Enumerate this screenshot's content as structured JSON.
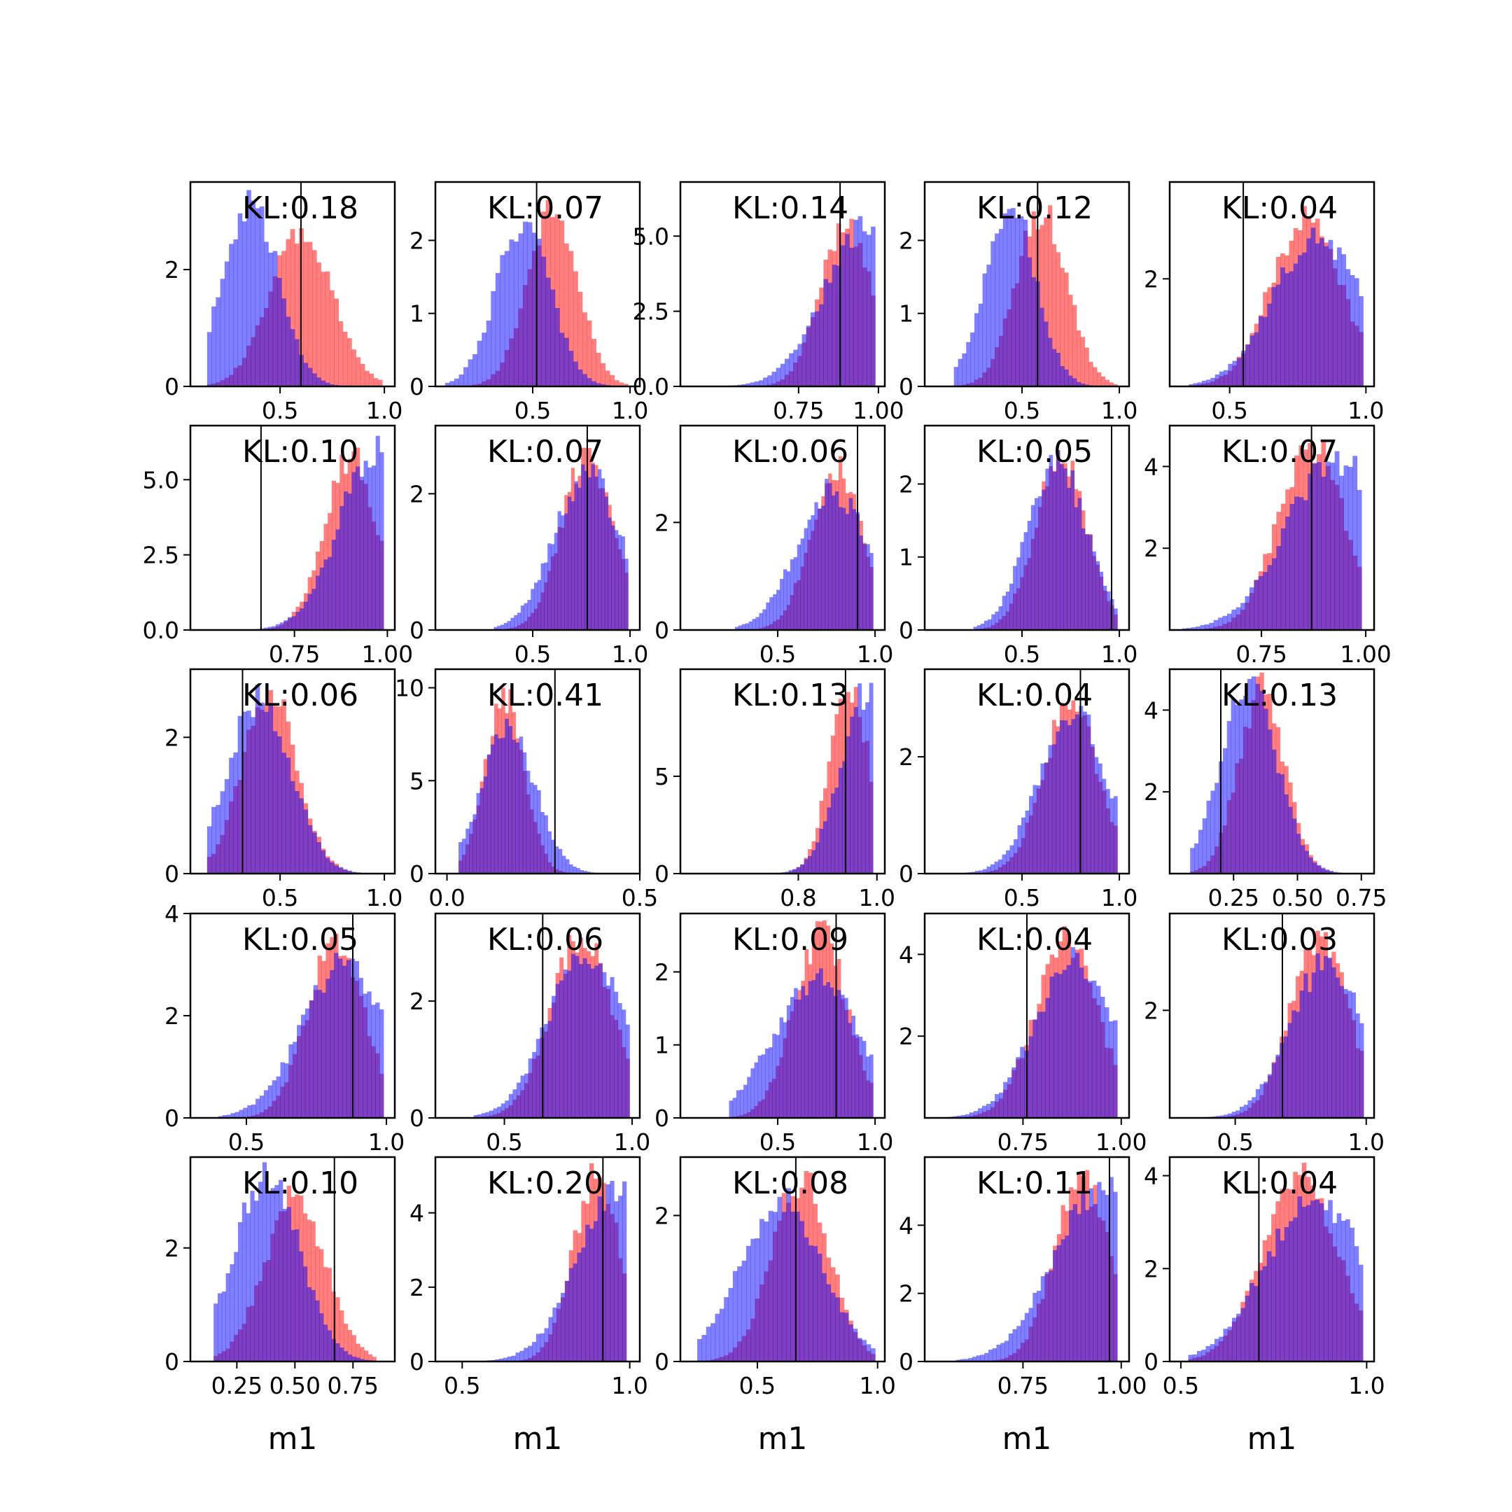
{
  "chart_data": {
    "type": "histogram-grid",
    "rows": 5,
    "cols": 5,
    "xlabel": "m1",
    "colors": {
      "series_a": "#ff0000",
      "series_b": "#0000ff",
      "overlap": "#8040c0",
      "alpha": 0.5
    },
    "panels": [
      {
        "kl": "KL:0.18",
        "xlim": [
          0.07,
          1.05
        ],
        "ylim": [
          0,
          3.5
        ],
        "xticks": [
          {
            "v": 0.5,
            "l": "0.5"
          },
          {
            "v": 1.0,
            "l": "1.0"
          }
        ],
        "yticks": [
          {
            "v": 0,
            "l": "0"
          },
          {
            "v": 2,
            "l": "2"
          }
        ],
        "vline": 0.6,
        "red_mode": 0.6,
        "red_sd": 0.15,
        "red_peak": 2.6,
        "blue_mode": 0.36,
        "blue_sd": 0.13,
        "blue_peak": 3.2,
        "xmin": 0.15,
        "xmax": 0.99
      },
      {
        "kl": "KL:0.07",
        "xlim": [
          0.0,
          1.05
        ],
        "ylim": [
          0,
          2.8
        ],
        "xticks": [
          {
            "v": 0.5,
            "l": "0.5"
          },
          {
            "v": 1.0,
            "l": "1.0"
          }
        ],
        "yticks": [
          {
            "v": 0,
            "l": "0"
          },
          {
            "v": 1,
            "l": "1"
          },
          {
            "v": 2,
            "l": "2"
          }
        ],
        "vline": 0.52,
        "red_mode": 0.6,
        "red_sd": 0.13,
        "red_peak": 2.4,
        "blue_mode": 0.45,
        "blue_sd": 0.14,
        "blue_peak": 2.2,
        "xmin": 0.05,
        "xmax": 0.99
      },
      {
        "kl": "KL:0.14",
        "xlim": [
          0.38,
          1.02
        ],
        "ylim": [
          0,
          6.8
        ],
        "xticks": [
          {
            "v": 0.75,
            "l": "0.75"
          },
          {
            "v": 1.0,
            "l": "1.00"
          }
        ],
        "yticks": [
          {
            "v": 0,
            "l": "0.0"
          },
          {
            "v": 2.5,
            "l": "2.5"
          },
          {
            "v": 5.0,
            "l": "5.0"
          }
        ],
        "vline": 0.88,
        "red_mode": 0.9,
        "red_sd": 0.08,
        "red_peak": 5.5,
        "blue_mode": 0.96,
        "blue_sd": 0.13,
        "blue_peak": 5.2,
        "xmin": 0.45,
        "xmax": 0.99
      },
      {
        "kl": "KL:0.12",
        "xlim": [
          0.0,
          1.05
        ],
        "ylim": [
          0,
          2.8
        ],
        "xticks": [
          {
            "v": 0.5,
            "l": "0.5"
          },
          {
            "v": 1.0,
            "l": "1.0"
          }
        ],
        "yticks": [
          {
            "v": 0,
            "l": "0"
          },
          {
            "v": 1,
            "l": "1"
          },
          {
            "v": 2,
            "l": "2"
          }
        ],
        "vline": 0.58,
        "red_mode": 0.6,
        "red_sd": 0.13,
        "red_peak": 2.4,
        "blue_mode": 0.44,
        "blue_sd": 0.13,
        "blue_peak": 2.5,
        "xmin": 0.15,
        "xmax": 0.99
      },
      {
        "kl": "KL:0.04",
        "xlim": [
          0.28,
          1.03
        ],
        "ylim": [
          0,
          3.8
        ],
        "xticks": [
          {
            "v": 0.5,
            "l": "0.5"
          },
          {
            "v": 1.0,
            "l": "1.0"
          }
        ],
        "yticks": [
          {
            "v": 2,
            "l": "2"
          }
        ],
        "vline": 0.55,
        "red_mode": 0.78,
        "red_sd": 0.13,
        "red_peak": 3.1,
        "blue_mode": 0.82,
        "blue_sd": 0.16,
        "blue_peak": 2.8,
        "xmin": 0.35,
        "xmax": 0.99
      },
      {
        "kl": "KL:0.10",
        "xlim": [
          0.47,
          1.02
        ],
        "ylim": [
          0,
          6.8
        ],
        "xticks": [
          {
            "v": 0.75,
            "l": "0.75"
          },
          {
            "v": 1.0,
            "l": "1.00"
          }
        ],
        "yticks": [
          {
            "v": 0,
            "l": "0.0"
          },
          {
            "v": 2.5,
            "l": "2.5"
          },
          {
            "v": 5.0,
            "l": "5.0"
          }
        ],
        "vline": 0.66,
        "red_mode": 0.9,
        "red_sd": 0.07,
        "red_peak": 5.8,
        "blue_mode": 0.97,
        "blue_sd": 0.1,
        "blue_peak": 5.9,
        "xmin": 0.56,
        "xmax": 0.99
      },
      {
        "kl": "KL:0.07",
        "xlim": [
          0.0,
          1.05
        ],
        "ylim": [
          0,
          3.0
        ],
        "xticks": [
          {
            "v": 0.5,
            "l": "0.5"
          },
          {
            "v": 1.0,
            "l": "1.0"
          }
        ],
        "yticks": [
          {
            "v": 0,
            "l": "0"
          },
          {
            "v": 2,
            "l": "2"
          }
        ],
        "vline": 0.78,
        "red_mode": 0.78,
        "red_sd": 0.13,
        "red_peak": 2.6,
        "blue_mode": 0.78,
        "blue_sd": 0.17,
        "blue_peak": 2.3,
        "xmin": 0.3,
        "xmax": 0.99
      },
      {
        "kl": "KL:0.06",
        "xlim": [
          0.0,
          1.05
        ],
        "ylim": [
          0,
          3.8
        ],
        "xticks": [
          {
            "v": 0.5,
            "l": "0.5"
          },
          {
            "v": 1.0,
            "l": "1.0"
          }
        ],
        "yticks": [
          {
            "v": 0,
            "l": "0"
          },
          {
            "v": 2,
            "l": "2"
          }
        ],
        "vline": 0.91,
        "red_mode": 0.8,
        "red_sd": 0.13,
        "red_peak": 3.0,
        "blue_mode": 0.78,
        "blue_sd": 0.18,
        "blue_peak": 2.6,
        "xmin": 0.28,
        "xmax": 0.99
      },
      {
        "kl": "KL:0.05",
        "xlim": [
          0.0,
          1.05
        ],
        "ylim": [
          0,
          2.8
        ],
        "xticks": [
          {
            "v": 0.5,
            "l": "0.5"
          },
          {
            "v": 1.0,
            "l": "1.0"
          }
        ],
        "yticks": [
          {
            "v": 0,
            "l": "0"
          },
          {
            "v": 1,
            "l": "1"
          },
          {
            "v": 2,
            "l": "2"
          }
        ],
        "vline": 0.96,
        "red_mode": 0.7,
        "red_sd": 0.13,
        "red_peak": 2.4,
        "blue_mode": 0.68,
        "blue_sd": 0.15,
        "blue_peak": 2.3,
        "xmin": 0.25,
        "xmax": 0.99
      },
      {
        "kl": "KL:0.07",
        "xlim": [
          0.53,
          1.02
        ],
        "ylim": [
          0,
          5.0
        ],
        "xticks": [
          {
            "v": 0.75,
            "l": "0.75"
          },
          {
            "v": 1.0,
            "l": "1.00"
          }
        ],
        "yticks": [
          {
            "v": 2,
            "l": "2"
          },
          {
            "v": 4,
            "l": "4"
          }
        ],
        "vline": 0.87,
        "red_mode": 0.87,
        "red_sd": 0.08,
        "red_peak": 4.5,
        "blue_mode": 0.93,
        "blue_sd": 0.12,
        "blue_peak": 4.2,
        "xmin": 0.56,
        "xmax": 0.99
      },
      {
        "kl": "KL:0.06",
        "xlim": [
          0.07,
          1.05
        ],
        "ylim": [
          0,
          3.0
        ],
        "xticks": [
          {
            "v": 0.5,
            "l": "0.5"
          },
          {
            "v": 1.0,
            "l": "1.0"
          }
        ],
        "yticks": [
          {
            "v": 0,
            "l": "0"
          },
          {
            "v": 2,
            "l": "2"
          }
        ],
        "vline": 0.32,
        "red_mode": 0.45,
        "red_sd": 0.13,
        "red_peak": 2.7,
        "blue_mode": 0.4,
        "blue_sd": 0.15,
        "blue_peak": 2.6,
        "xmin": 0.15,
        "xmax": 0.99
      },
      {
        "kl": "KL:0.41",
        "xlim": [
          -0.03,
          0.5
        ],
        "ylim": [
          0,
          11.0
        ],
        "xticks": [
          {
            "v": 0.0,
            "l": "0.0"
          },
          {
            "v": 0.5,
            "l": "0.5"
          }
        ],
        "yticks": [
          {
            "v": 0,
            "l": "0"
          },
          {
            "v": 5,
            "l": "5"
          },
          {
            "v": 10,
            "l": "10"
          }
        ],
        "vline": 0.28,
        "red_mode": 0.15,
        "red_sd": 0.05,
        "red_peak": 9.5,
        "blue_mode": 0.16,
        "blue_sd": 0.07,
        "blue_peak": 7.8,
        "xmin": 0.03,
        "xmax": 0.4
      },
      {
        "kl": "KL:0.13",
        "xlim": [
          0.5,
          1.02
        ],
        "ylim": [
          0,
          10.5
        ],
        "xticks": [
          {
            "v": 0.8,
            "l": "0.8"
          },
          {
            "v": 1.0,
            "l": "1.0"
          }
        ],
        "yticks": [
          {
            "v": 0,
            "l": "0"
          },
          {
            "v": 5,
            "l": "5"
          }
        ],
        "vline": 0.92,
        "red_mode": 0.93,
        "red_sd": 0.05,
        "red_peak": 9.5,
        "blue_mode": 0.98,
        "blue_sd": 0.07,
        "blue_peak": 9.5,
        "xmin": 0.6,
        "xmax": 0.99
      },
      {
        "kl": "KL:0.04",
        "xlim": [
          0.0,
          1.05
        ],
        "ylim": [
          0,
          3.5
        ],
        "xticks": [
          {
            "v": 0.5,
            "l": "0.5"
          },
          {
            "v": 1.0,
            "l": "1.0"
          }
        ],
        "yticks": [
          {
            "v": 0,
            "l": "0"
          },
          {
            "v": 2,
            "l": "2"
          }
        ],
        "vline": 0.8,
        "red_mode": 0.75,
        "red_sd": 0.14,
        "red_peak": 2.9,
        "blue_mode": 0.76,
        "blue_sd": 0.17,
        "blue_peak": 2.8,
        "xmin": 0.2,
        "xmax": 0.99
      },
      {
        "kl": "KL:0.13",
        "xlim": [
          0.0,
          0.8
        ],
        "ylim": [
          0,
          5.0
        ],
        "xticks": [
          {
            "v": 0.25,
            "l": "0.25"
          },
          {
            "v": 0.5,
            "l": "0.50"
          },
          {
            "v": 0.75,
            "l": "0.75"
          }
        ],
        "yticks": [
          {
            "v": 2,
            "l": "2"
          },
          {
            "v": 4,
            "l": "4"
          }
        ],
        "vline": 0.2,
        "red_mode": 0.36,
        "red_sd": 0.09,
        "red_peak": 4.5,
        "blue_mode": 0.31,
        "blue_sd": 0.11,
        "blue_peak": 4.6,
        "xmin": 0.08,
        "xmax": 0.72
      },
      {
        "kl": "KL:0.05",
        "xlim": [
          0.3,
          1.03
        ],
        "ylim": [
          0,
          4.0
        ],
        "xticks": [
          {
            "v": 0.5,
            "l": "0.5"
          },
          {
            "v": 1.0,
            "l": "1.0"
          }
        ],
        "yticks": [
          {
            "v": 0,
            "l": "0"
          },
          {
            "v": 2,
            "l": "2"
          },
          {
            "v": 4,
            "l": "4"
          }
        ],
        "vline": 0.88,
        "red_mode": 0.82,
        "red_sd": 0.1,
        "red_peak": 3.5,
        "blue_mode": 0.85,
        "blue_sd": 0.15,
        "blue_peak": 3.0,
        "xmin": 0.4,
        "xmax": 0.99
      },
      {
        "kl": "KL:0.06",
        "xlim": [
          0.23,
          1.03
        ],
        "ylim": [
          0,
          3.5
        ],
        "xticks": [
          {
            "v": 0.5,
            "l": "0.5"
          },
          {
            "v": 1.0,
            "l": "1.0"
          }
        ],
        "yticks": [
          {
            "v": 0,
            "l": "0"
          },
          {
            "v": 2,
            "l": "2"
          }
        ],
        "vline": 0.65,
        "red_mode": 0.8,
        "red_sd": 0.12,
        "red_peak": 3.1,
        "blue_mode": 0.82,
        "blue_sd": 0.15,
        "blue_peak": 2.8,
        "xmin": 0.38,
        "xmax": 0.99
      },
      {
        "kl": "KL:0.09",
        "xlim": [
          0.0,
          1.05
        ],
        "ylim": [
          0,
          2.8
        ],
        "xticks": [
          {
            "v": 0.5,
            "l": "0.5"
          },
          {
            "v": 1.0,
            "l": "1.0"
          }
        ],
        "yticks": [
          {
            "v": 0,
            "l": "0"
          },
          {
            "v": 1,
            "l": "1"
          },
          {
            "v": 2,
            "l": "2"
          }
        ],
        "vline": 0.8,
        "red_mode": 0.72,
        "red_sd": 0.14,
        "red_peak": 2.5,
        "blue_mode": 0.7,
        "blue_sd": 0.22,
        "blue_peak": 1.9,
        "xmin": 0.25,
        "xmax": 0.99
      },
      {
        "kl": "KL:0.04",
        "xlim": [
          0.5,
          1.02
        ],
        "ylim": [
          0,
          5.0
        ],
        "xticks": [
          {
            "v": 0.75,
            "l": "0.75"
          },
          {
            "v": 1.0,
            "l": "1.00"
          }
        ],
        "yticks": [
          {
            "v": 2,
            "l": "2"
          },
          {
            "v": 4,
            "l": "4"
          }
        ],
        "vline": 0.76,
        "red_mode": 0.86,
        "red_sd": 0.08,
        "red_peak": 4.3,
        "blue_mode": 0.88,
        "blue_sd": 0.1,
        "blue_peak": 3.8,
        "xmin": 0.56,
        "xmax": 0.99
      },
      {
        "kl": "KL:0.03",
        "xlim": [
          0.25,
          1.03
        ],
        "ylim": [
          0,
          3.8
        ],
        "xticks": [
          {
            "v": 0.5,
            "l": "0.5"
          },
          {
            "v": 1.0,
            "l": "1.0"
          }
        ],
        "yticks": [
          {
            "v": 2,
            "l": "2"
          }
        ],
        "vline": 0.68,
        "red_mode": 0.82,
        "red_sd": 0.11,
        "red_peak": 3.4,
        "blue_mode": 0.85,
        "blue_sd": 0.14,
        "blue_peak": 2.9,
        "xmin": 0.38,
        "xmax": 0.99
      },
      {
        "kl": "KL:0.10",
        "xlim": [
          0.05,
          0.93
        ],
        "ylim": [
          0,
          3.6
        ],
        "xticks": [
          {
            "v": 0.25,
            "l": "0.25"
          },
          {
            "v": 0.5,
            "l": "0.50"
          },
          {
            "v": 0.75,
            "l": "0.75"
          }
        ],
        "yticks": [
          {
            "v": 0,
            "l": "0"
          },
          {
            "v": 2,
            "l": "2"
          }
        ],
        "vline": 0.67,
        "red_mode": 0.5,
        "red_sd": 0.13,
        "red_peak": 2.9,
        "blue_mode": 0.38,
        "blue_sd": 0.14,
        "blue_peak": 3.3,
        "xmin": 0.15,
        "xmax": 0.85
      },
      {
        "kl": "KL:0.20",
        "xlim": [
          0.42,
          1.03
        ],
        "ylim": [
          0,
          5.5
        ],
        "xticks": [
          {
            "v": 0.5,
            "l": "0.5"
          },
          {
            "v": 1.0,
            "l": "1.0"
          }
        ],
        "yticks": [
          {
            "v": 0,
            "l": "0"
          },
          {
            "v": 2,
            "l": "2"
          },
          {
            "v": 4,
            "l": "4"
          }
        ],
        "vline": 0.92,
        "red_mode": 0.9,
        "red_sd": 0.07,
        "red_peak": 5.0,
        "blue_mode": 0.96,
        "blue_sd": 0.12,
        "blue_peak": 4.5,
        "xmin": 0.5,
        "xmax": 0.99
      },
      {
        "kl": "KL:0.08",
        "xlim": [
          0.18,
          1.03
        ],
        "ylim": [
          0,
          2.8
        ],
        "xticks": [
          {
            "v": 0.5,
            "l": "0.5"
          },
          {
            "v": 1.0,
            "l": "1.0"
          }
        ],
        "yticks": [
          {
            "v": 0,
            "l": "0"
          },
          {
            "v": 2,
            "l": "2"
          }
        ],
        "vline": 0.66,
        "red_mode": 0.68,
        "red_sd": 0.12,
        "red_peak": 2.5,
        "blue_mode": 0.6,
        "blue_sd": 0.17,
        "blue_peak": 2.2,
        "xmin": 0.25,
        "xmax": 0.99
      },
      {
        "kl": "KL:0.11",
        "xlim": [
          0.5,
          1.02
        ],
        "ylim": [
          0,
          6.0
        ],
        "xticks": [
          {
            "v": 0.75,
            "l": "0.75"
          },
          {
            "v": 1.0,
            "l": "1.00"
          }
        ],
        "yticks": [
          {
            "v": 0,
            "l": "0"
          },
          {
            "v": 2,
            "l": "2"
          },
          {
            "v": 4,
            "l": "4"
          }
        ],
        "vline": 0.97,
        "red_mode": 0.9,
        "red_sd": 0.07,
        "red_peak": 5.3,
        "blue_mode": 0.95,
        "blue_sd": 0.12,
        "blue_peak": 5.1,
        "xmin": 0.58,
        "xmax": 0.99
      },
      {
        "kl": "KL:0.04",
        "xlim": [
          0.47,
          1.02
        ],
        "ylim": [
          0,
          4.4
        ],
        "xticks": [
          {
            "v": 0.5,
            "l": "0.5"
          },
          {
            "v": 1.0,
            "l": "1.0"
          }
        ],
        "yticks": [
          {
            "v": 0,
            "l": "0"
          },
          {
            "v": 2,
            "l": "2"
          },
          {
            "v": 4,
            "l": "4"
          }
        ],
        "vline": 0.71,
        "red_mode": 0.82,
        "red_sd": 0.1,
        "red_peak": 4.0,
        "blue_mode": 0.86,
        "blue_sd": 0.13,
        "blue_peak": 3.6,
        "xmin": 0.52,
        "xmax": 0.99
      }
    ]
  }
}
